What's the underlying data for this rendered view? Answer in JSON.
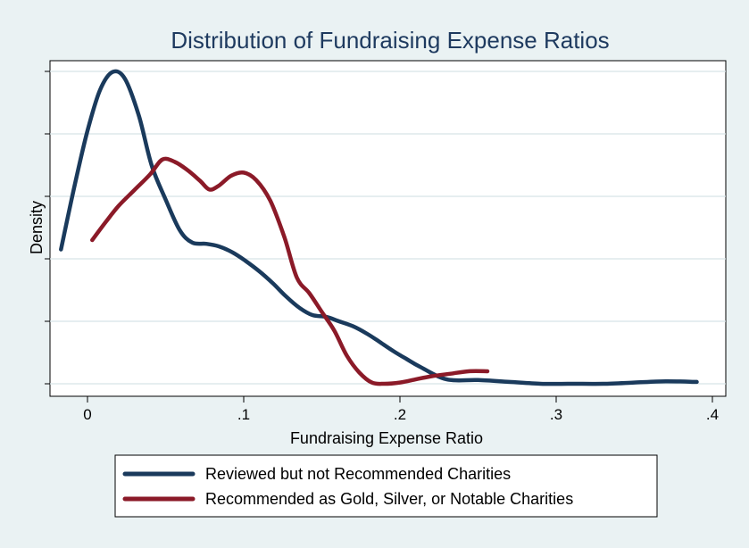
{
  "chart_data": {
    "type": "line",
    "title": "Distribution of Fundraising Expense Ratios",
    "xlabel": "Fundraising Expense Ratio",
    "ylabel": "Density",
    "xlim": [
      -0.02,
      0.4
    ],
    "ylim": [
      0,
      5
    ],
    "x_ticks": [
      0,
      0.1,
      0.2,
      0.3,
      0.4
    ],
    "x_tick_labels": [
      "0",
      ".1",
      ".2",
      ".3",
      ".4"
    ],
    "y_ticks": [
      0,
      1,
      2,
      3,
      4,
      5
    ],
    "y_tick_labels_shown": false,
    "grid": true,
    "legend_position": "bottom",
    "series": [
      {
        "name": "Reviewed but not Recommended Charities",
        "color": "#1a3a5c",
        "x": [
          -0.017,
          -0.008,
          0.0,
          0.008,
          0.016,
          0.024,
          0.033,
          0.041,
          0.05,
          0.059,
          0.067,
          0.076,
          0.084,
          0.093,
          0.101,
          0.11,
          0.119,
          0.127,
          0.136,
          0.144,
          0.153,
          0.161,
          0.17,
          0.179,
          0.187,
          0.196,
          0.204,
          0.213,
          0.23,
          0.25,
          0.27,
          0.29,
          0.31,
          0.33,
          0.35,
          0.37,
          0.39
        ],
        "values": [
          2.15,
          3.2,
          4.05,
          4.7,
          4.99,
          4.88,
          4.28,
          3.5,
          2.95,
          2.46,
          2.26,
          2.24,
          2.2,
          2.1,
          1.97,
          1.8,
          1.6,
          1.4,
          1.21,
          1.1,
          1.07,
          1.0,
          0.92,
          0.8,
          0.67,
          0.52,
          0.4,
          0.27,
          0.07,
          0.06,
          0.03,
          0.0,
          0.0,
          0.0,
          0.02,
          0.04,
          0.03
        ]
      },
      {
        "name": "Recommended as Gold, Silver, or Notable Charities",
        "color": "#8b1a28",
        "x": [
          0.003,
          0.012,
          0.02,
          0.03,
          0.04,
          0.048,
          0.056,
          0.064,
          0.072,
          0.078,
          0.084,
          0.092,
          0.1,
          0.108,
          0.117,
          0.126,
          0.134,
          0.142,
          0.15,
          0.158,
          0.166,
          0.174,
          0.182,
          0.19,
          0.2,
          0.21,
          0.22,
          0.232,
          0.244,
          0.256
        ],
        "values": [
          2.3,
          2.6,
          2.85,
          3.1,
          3.35,
          3.59,
          3.55,
          3.42,
          3.25,
          3.11,
          3.17,
          3.33,
          3.38,
          3.26,
          2.93,
          2.35,
          1.7,
          1.45,
          1.15,
          0.85,
          0.45,
          0.18,
          0.02,
          0.0,
          0.02,
          0.07,
          0.12,
          0.16,
          0.2,
          0.2
        ]
      }
    ]
  }
}
